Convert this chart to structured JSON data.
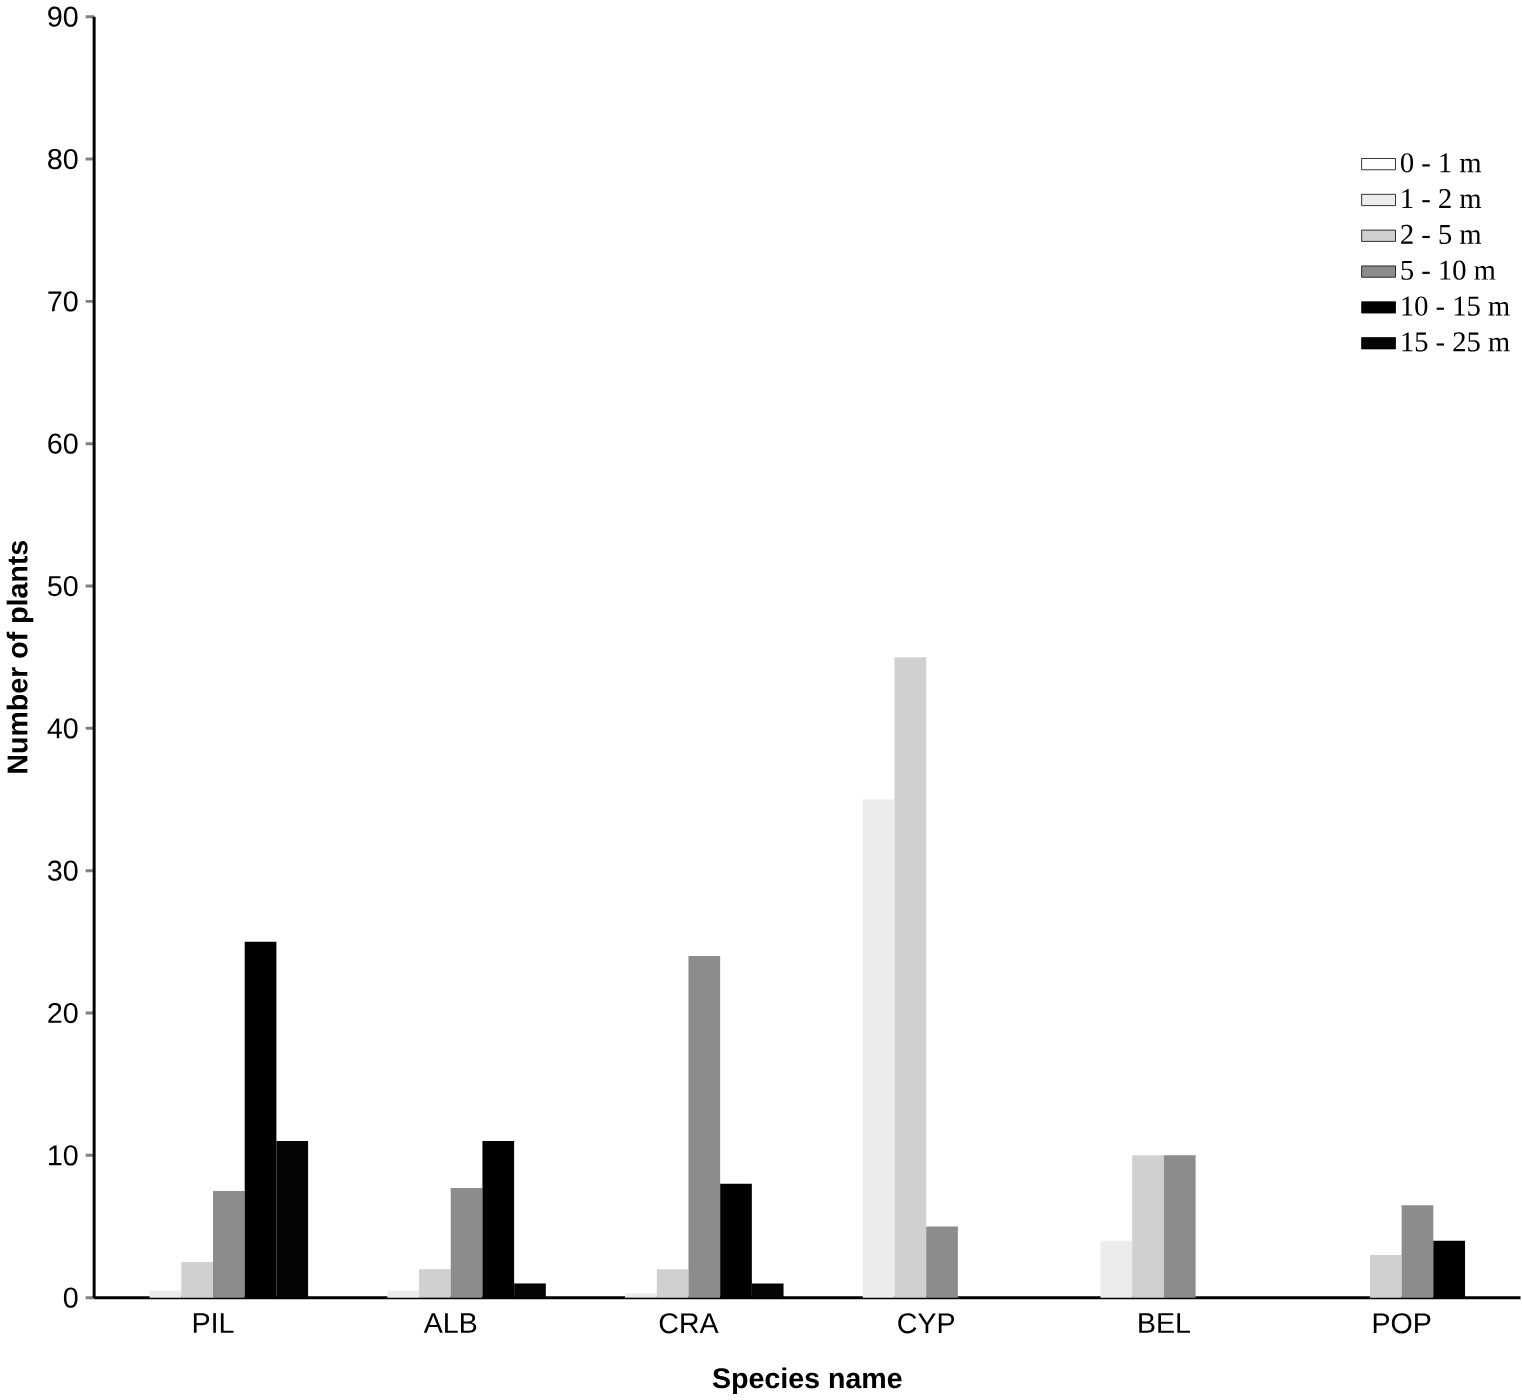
{
  "chart_data": {
    "type": "bar",
    "xlabel": "Species name",
    "ylabel": "Number of plants",
    "categories": [
      "PIL",
      "ALB",
      "CRA",
      "CYP",
      "BEL",
      "POP"
    ],
    "series": [
      {
        "name": "0 - 1 m",
        "color": "#ffffff",
        "values": [
          0,
          0,
          0,
          0,
          0,
          0
        ]
      },
      {
        "name": "1 - 2 m",
        "color": "#ececec",
        "values": [
          0.5,
          0.5,
          0.3,
          35,
          4,
          0
        ]
      },
      {
        "name": "2 - 5 m",
        "color": "#d0d0d0",
        "values": [
          2.5,
          2,
          2,
          45,
          10,
          3
        ]
      },
      {
        "name": "5 - 10 m",
        "color": "#8c8c8c",
        "values": [
          7.5,
          7.7,
          24,
          5,
          10,
          6.5
        ]
      },
      {
        "name": "10 - 15 m",
        "color": "#000000",
        "values": [
          25,
          11,
          8,
          0,
          0,
          4
        ]
      },
      {
        "name": "15 - 25 m",
        "color": "#050505",
        "values": [
          11,
          1,
          1,
          0,
          0,
          0
        ]
      }
    ],
    "ylim": [
      0,
      90
    ],
    "yticks": [
      0,
      10,
      20,
      30,
      40,
      50,
      60,
      70,
      80,
      90
    ],
    "legend": "top right",
    "grid": false
  }
}
